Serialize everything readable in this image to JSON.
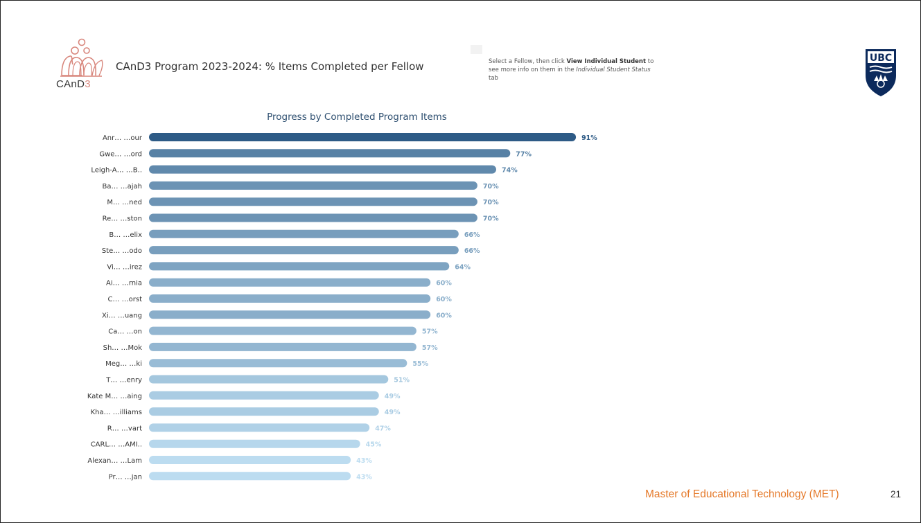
{
  "header": {
    "logo_text_main": "CAnD",
    "logo_text_suffix": "3",
    "title": "CAnD3 Program 2023-2024: % Items Completed per Fellow",
    "helper_intro": "Select  a Fellow, then click ",
    "helper_bold": "View Individual Student",
    "helper_mid": " to see more info on them in the ",
    "helper_italic": "Individual Student Status",
    "helper_end": " tab",
    "ubc_logo_text": "UBC"
  },
  "footer": {
    "program": "Master of Educational Technology (MET)",
    "page_number": "21"
  },
  "colors": {
    "bar_darkest": "#2e5b86",
    "bar_lightest": "#bcdcf0",
    "label_text": "#333333",
    "accent_orange": "#e57a2b",
    "cand_pink": "#d8867c"
  },
  "chart_data": {
    "type": "bar",
    "orientation": "horizontal",
    "title": "Progress by Completed Program Items",
    "xlim": [
      0,
      100
    ],
    "grid": false,
    "legend": "none",
    "categories": [
      "Anr…  …our",
      "Gwe…  …ord",
      "Leigh-A…  …B..",
      "Ba…  …ajah",
      "M…  …ned",
      "Re…  …ston",
      "B…  …elix",
      "Ste…  …odo",
      "Vi…  …irez",
      "Ai…  …rnia",
      "C…  …orst",
      "Xi…  …uang",
      "Ca…  …on",
      "Sh…  …Mok",
      "Meg…  …ki",
      "T…  …enry",
      "Kate M…  …aing",
      "Kha…  …illiams",
      "R…  …vart",
      "CARL…  …AMI..",
      "Alexan…  …Lam",
      "Pr…  …jan"
    ],
    "values": [
      91,
      77,
      74,
      70,
      70,
      70,
      66,
      66,
      64,
      60,
      60,
      60,
      57,
      57,
      55,
      51,
      49,
      49,
      47,
      45,
      43,
      43
    ],
    "value_labels": [
      "91%",
      "77%",
      "74%",
      "70%",
      "70%",
      "70%",
      "66%",
      "66%",
      "64%",
      "60%",
      "60%",
      "60%",
      "57%",
      "57%",
      "55%",
      "51%",
      "49%",
      "49%",
      "47%",
      "45%",
      "43%",
      "43%"
    ]
  }
}
